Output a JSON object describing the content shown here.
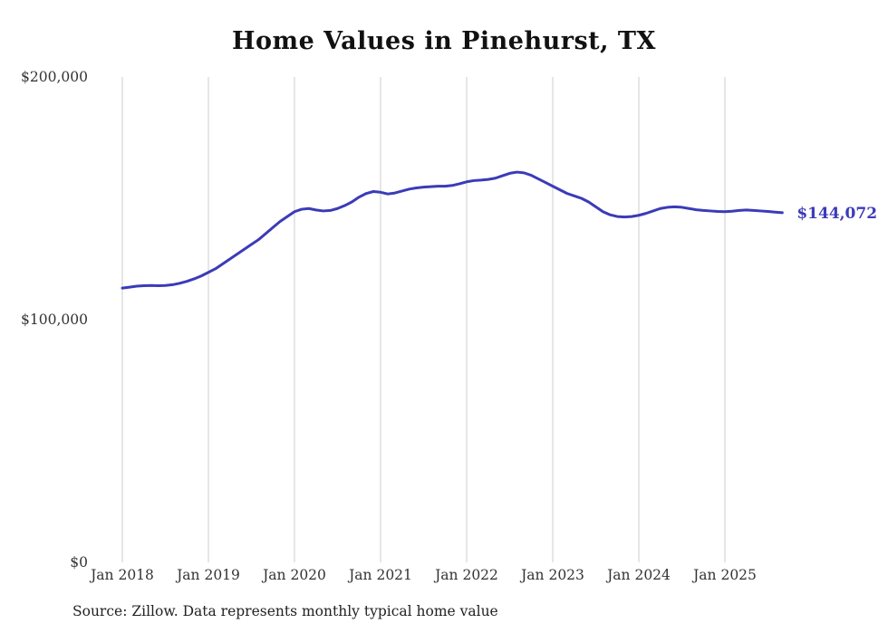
{
  "title": "Home Values in Pinehurst, TX",
  "source": "Source: Zillow. Data represents monthly typical home value",
  "end_label": "$144,072",
  "colors": {
    "line": "#3b3bb8",
    "grid": "#cccccc",
    "tick_text": "#333333"
  },
  "chart_data": {
    "type": "line",
    "title": "Home Values in Pinehurst, TX",
    "series_name": "Monthly typical home value",
    "frequency": "monthly",
    "x_start_label": "Jan 2018",
    "x_end_label": "Sep 2025",
    "x_tick_labels": [
      "Jan 2018",
      "Jan 2019",
      "Jan 2020",
      "Jan 2021",
      "Jan 2022",
      "Jan 2023",
      "Jan 2024",
      "Jan 2025"
    ],
    "y_ticks": [
      {
        "value": 0,
        "label": "$0"
      },
      {
        "value": 100000,
        "label": "$100,000"
      },
      {
        "value": 200000,
        "label": "$200,000"
      }
    ],
    "ylim": [
      0,
      200000
    ],
    "grid": "vertical-only",
    "legend": "none",
    "end_value": 144072,
    "values": [
      113000,
      113400,
      113800,
      114000,
      114100,
      114000,
      114100,
      114400,
      115000,
      115800,
      116800,
      118000,
      119500,
      121000,
      123000,
      125000,
      127000,
      129000,
      131000,
      133000,
      135500,
      138000,
      140500,
      142500,
      144500,
      145500,
      145800,
      145200,
      144800,
      145000,
      145800,
      147000,
      148500,
      150500,
      152000,
      152800,
      152500,
      151800,
      152200,
      153000,
      153800,
      154300,
      154600,
      154800,
      155000,
      155000,
      155300,
      156000,
      156800,
      157300,
      157500,
      157800,
      158300,
      159300,
      160300,
      160800,
      160500,
      159500,
      158000,
      156500,
      155000,
      153500,
      152000,
      151000,
      150000,
      148500,
      146500,
      144500,
      143200,
      142500,
      142300,
      142500,
      143000,
      143800,
      144800,
      145800,
      146300,
      146500,
      146300,
      145800,
      145300,
      145000,
      144800,
      144600,
      144500,
      144700,
      145000,
      145200,
      145000,
      144800,
      144600,
      144300,
      144072
    ]
  }
}
